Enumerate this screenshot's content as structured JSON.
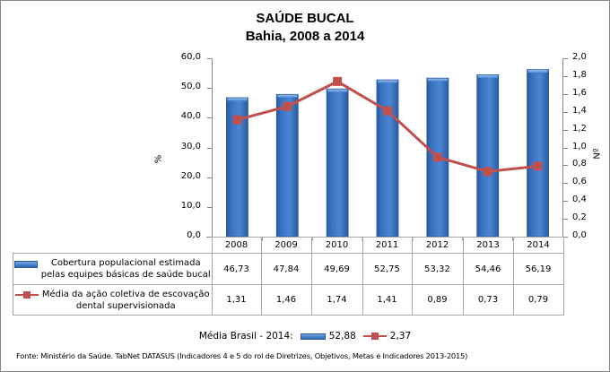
{
  "title": {
    "line1": "SAÚDE BUCAL",
    "line2": "Bahia, 2008 a 2014"
  },
  "axes": {
    "left_label": "%",
    "right_label": "Nº",
    "left_ticks": [
      "60,0",
      "50,0",
      "40,0",
      "30,0",
      "20,0",
      "10,0",
      "0,0"
    ],
    "right_ticks": [
      "2,0",
      "1,8",
      "1,6",
      "1,4",
      "1,2",
      "1,0",
      "0,8",
      "0,6",
      "0,4",
      "0,2",
      "0,0"
    ]
  },
  "table": {
    "years": [
      "2008",
      "2009",
      "2010",
      "2011",
      "2012",
      "2013",
      "2014"
    ],
    "series1_label_line1": "Cobertura populacional estimada",
    "series1_label_line2": "pelas equipes básicas de saúde bucal",
    "series1_values": [
      "46,73",
      "47,84",
      "49,69",
      "52,75",
      "53,32",
      "54,46",
      "56,19"
    ],
    "series2_label_line1": "Média da ação coletiva de escovação",
    "series2_label_line2": "dental supervisionada",
    "series2_values": [
      "1,31",
      "1,46",
      "1,74",
      "1,41",
      "0,89",
      "0,73",
      "0,79"
    ]
  },
  "brasil": {
    "label": "Média Brasil - 2014:",
    "series1_value": "52,88",
    "series2_value": "2,37"
  },
  "source": "Fonte: Ministério da Saúde. TabNet DATASUS (Indicadores 4 e 5 do rol de Diretrizes, Objetivos, Metas e Indicadores 2013-2015)",
  "colors": {
    "bar": "#3a74c4",
    "bar_dark": "#2b5a9e",
    "line": "#c0504d",
    "axis": "#868686"
  },
  "chart_data": {
    "type": "bar+line",
    "title": "SAÚDE BUCAL — Bahia, 2008 a 2014",
    "categories": [
      "2008",
      "2009",
      "2010",
      "2011",
      "2012",
      "2013",
      "2014"
    ],
    "series": [
      {
        "name": "Cobertura populacional estimada pelas equipes básicas de saúde bucal",
        "type": "bar",
        "axis": "left",
        "values": [
          46.73,
          47.84,
          49.69,
          52.75,
          53.32,
          54.46,
          56.19
        ]
      },
      {
        "name": "Média da ação coletiva de escovação dental supervisionada",
        "type": "line",
        "axis": "right",
        "values": [
          1.31,
          1.46,
          1.74,
          1.41,
          0.89,
          0.73,
          0.79
        ]
      }
    ],
    "ylabel": "%",
    "ylim": [
      0,
      60
    ],
    "y2label": "Nº",
    "y2lim": [
      0,
      2.0
    ],
    "grid": false,
    "legend_position": "data table",
    "annotations": [
      "Média Brasil - 2014: 52,88 (cobertura), 2,37 (escovação)"
    ],
    "source": "Fonte: Ministério da Saúde. TabNet DATASUS (Indicadores 4 e 5 do rol de Diretrizes, Objetivos, Metas e Indicadores 2013-2015)"
  }
}
